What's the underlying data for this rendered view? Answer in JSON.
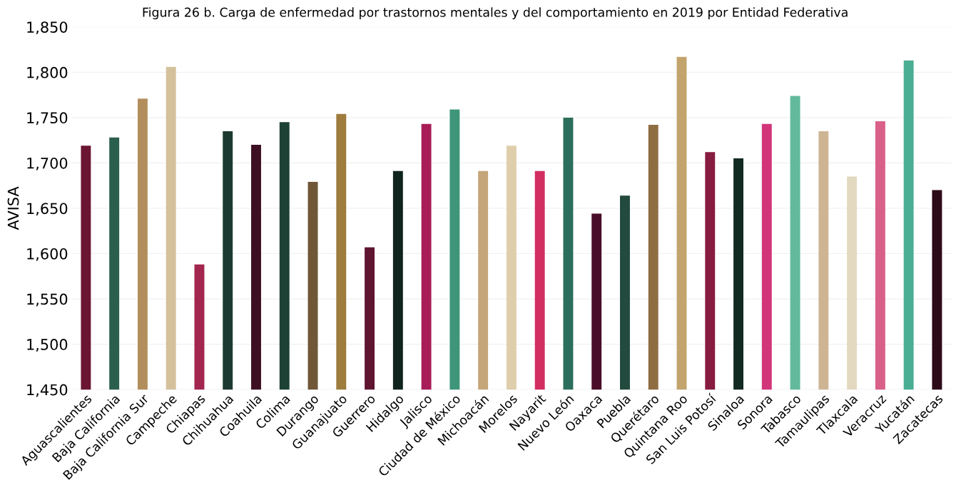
{
  "chart_data": {
    "type": "bar",
    "title": "Figura 26 b. Carga de enfermedad por trastornos mentales y del comportamiento en 2019 por Entidad Federativa",
    "ylabel": "AVISA",
    "categories": [
      "Aguascalientes",
      "Baja California",
      "Baja California Sur",
      "Campeche",
      "Chiapas",
      "Chihuahua",
      "Coahuila",
      "Colima",
      "Durango",
      "Guanajuato",
      "Guerrero",
      "Hidalgo",
      "Jalisco",
      "Ciudad de México",
      "Michoacán",
      "Morelos",
      "Nayarit",
      "Nuevo León",
      "Oaxaca",
      "Puebla",
      "Querétaro",
      "Quintana Roo",
      "San Luis Potosí",
      "Sinaloa",
      "Sonora",
      "Tabasco",
      "Tamaulipas",
      "Tlaxcala",
      "Veracruz",
      "Yucatán",
      "Zacatecas"
    ],
    "values": [
      1719,
      1728,
      1771,
      1806,
      1588,
      1735,
      1720,
      1745,
      1679,
      1754,
      1607,
      1691,
      1743,
      1759,
      1691,
      1719,
      1691,
      1750,
      1644,
      1664,
      1742,
      1817,
      1712,
      1705,
      1743,
      1774,
      1735,
      1685,
      1746,
      1813,
      1670
    ],
    "colors": [
      "#6b1533",
      "#2a5f4e",
      "#b38e5d",
      "#d4c19c",
      "#a3264f",
      "#1c3a31",
      "#3e0f22",
      "#1e4135",
      "#6f5737",
      "#9e7c3e",
      "#5f1430",
      "#10241e",
      "#a81d58",
      "#3f9579",
      "#c4a67a",
      "#dfceac",
      "#d22e62",
      "#2c6e5c",
      "#4a0d28",
      "#224a3e",
      "#8f6d43",
      "#c2a46c",
      "#861c3f",
      "#132a22",
      "#d3357a",
      "#62b99c",
      "#cdb594",
      "#e3d9c0",
      "#d96088",
      "#4aae93",
      "#2d0a18"
    ],
    "ylim": [
      1450,
      1850
    ],
    "yticks": [
      {
        "value": 1450,
        "label": "1,450"
      },
      {
        "value": 1500,
        "label": "1,500"
      },
      {
        "value": 1550,
        "label": "1,550"
      },
      {
        "value": 1600,
        "label": "1,600"
      },
      {
        "value": 1650,
        "label": "1,650"
      },
      {
        "value": 1700,
        "label": "1,700"
      },
      {
        "value": 1750,
        "label": "1,750"
      },
      {
        "value": 1800,
        "label": "1,800"
      },
      {
        "value": 1850,
        "label": "1,850"
      }
    ],
    "grid": "y"
  }
}
